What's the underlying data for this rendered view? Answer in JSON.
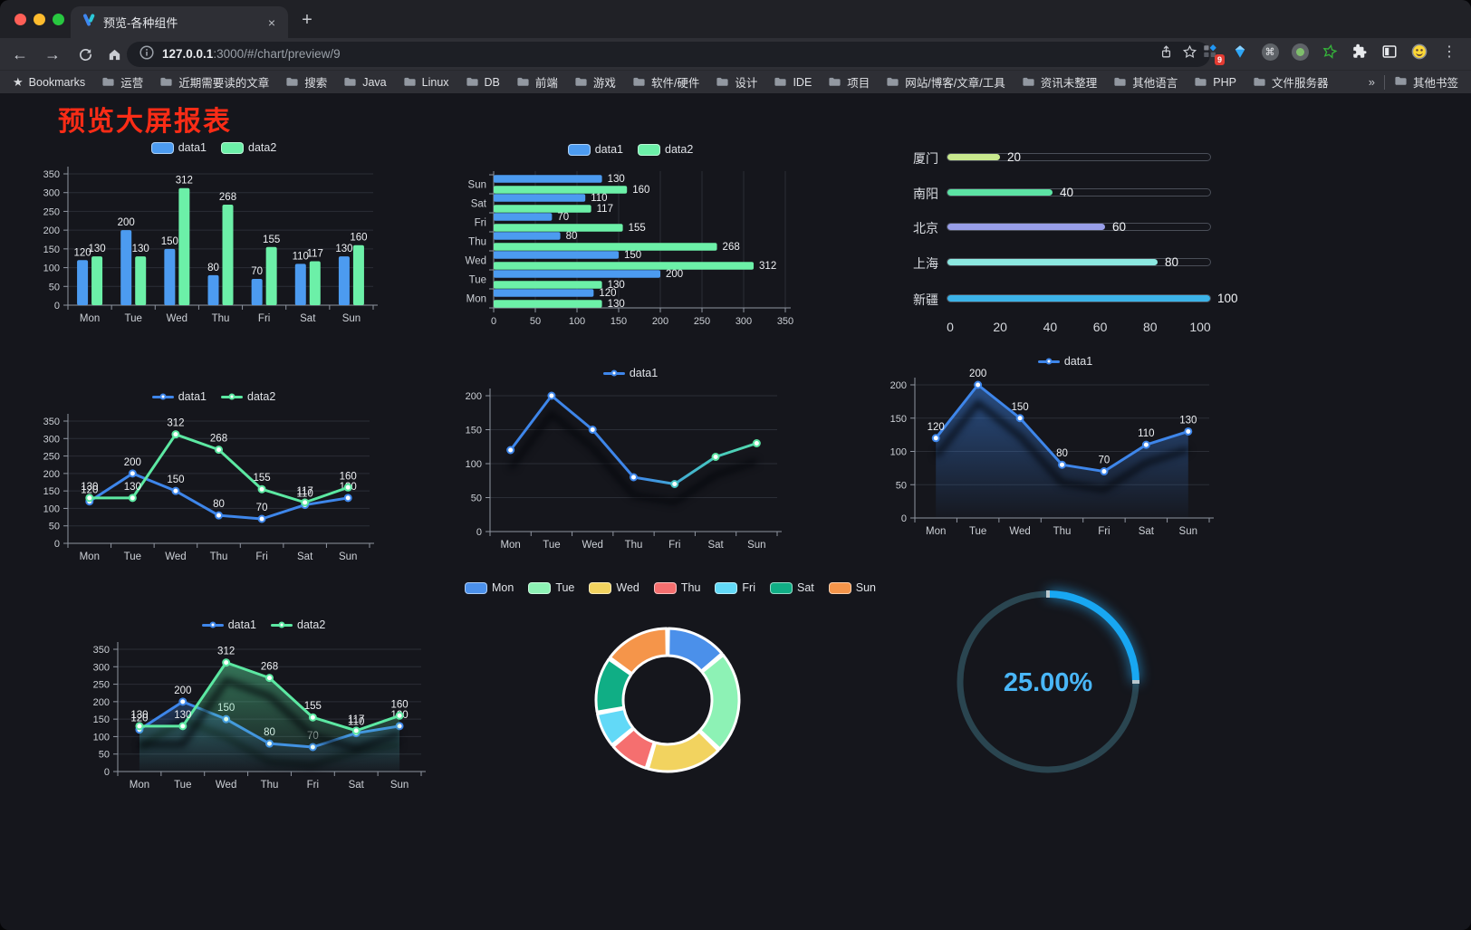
{
  "browser": {
    "traffic_lights": {
      "close": "#ff5f57",
      "minimize": "#febc2e",
      "zoom": "#28c840"
    },
    "tab": {
      "title": "预览-各种组件",
      "close_glyph": "×",
      "new_glyph": "+"
    },
    "url": {
      "host": "127.0.0.1",
      "rest": ":3000/#/chart/preview/9"
    },
    "bookmarks": {
      "label": "Bookmarks",
      "items": [
        "运营",
        "近期需要读的文章",
        "搜索",
        "Java",
        "Linux",
        "DB",
        "前端",
        "游戏",
        "软件/硬件",
        "设计",
        "IDE",
        "项目",
        "网站/博客/文章/工具",
        "资讯未整理",
        "其他语言",
        "PHP",
        "文件服务器"
      ],
      "overflow_glyph": "»",
      "other_label": "其他书签"
    },
    "extensions": {
      "badge": "9"
    }
  },
  "page": {
    "title": "预览大屏报表",
    "title_color": "#fa2c16",
    "background": "#15161c"
  },
  "chart_data": [
    {
      "id": "grouped-bar",
      "type": "bar",
      "legend_position": "top",
      "grid": true,
      "categories": [
        "Mon",
        "Tue",
        "Wed",
        "Thu",
        "Fri",
        "Sat",
        "Sun"
      ],
      "series": [
        {
          "name": "data1",
          "color": "#4c9bf0",
          "values": [
            120,
            200,
            150,
            80,
            70,
            110,
            130
          ]
        },
        {
          "name": "data2",
          "color": "#6cf0a8",
          "values": [
            130,
            130,
            312,
            268,
            155,
            117,
            160
          ]
        }
      ],
      "ylim": [
        0,
        350
      ],
      "yticks": [
        0,
        50,
        100,
        150,
        200,
        250,
        300,
        350
      ]
    },
    {
      "id": "grouped-hbar",
      "type": "bar",
      "orientation": "horizontal",
      "legend_position": "top",
      "grid": true,
      "categories": [
        "Mon",
        "Tue",
        "Wed",
        "Thu",
        "Fri",
        "Sat",
        "Sun"
      ],
      "category_order_on_screen": "Sun at top",
      "series": [
        {
          "name": "data1",
          "color": "#4c9bf0",
          "values": [
            120,
            200,
            150,
            80,
            70,
            110,
            130
          ]
        },
        {
          "name": "data2",
          "color": "#6cf0a8",
          "values": [
            130,
            130,
            312,
            268,
            155,
            117,
            160
          ]
        }
      ],
      "xlim": [
        0,
        350
      ],
      "xticks": [
        0,
        50,
        100,
        150,
        200,
        250,
        300,
        350
      ]
    },
    {
      "id": "city-progress",
      "type": "bar",
      "subtype": "progress-list",
      "categories": [
        "厦门",
        "南阳",
        "北京",
        "上海",
        "新疆"
      ],
      "values": [
        20,
        40,
        60,
        80,
        100
      ],
      "colors": [
        "#c8e98e",
        "#5ce3a4",
        "#989ee8",
        "#8ce8e0",
        "#3cb3e8"
      ],
      "xlim": [
        0,
        100
      ],
      "xticks": [
        0,
        20,
        40,
        60,
        80,
        100
      ]
    },
    {
      "id": "multi-line",
      "type": "line",
      "legend_position": "top",
      "grid": true,
      "categories": [
        "Mon",
        "Tue",
        "Wed",
        "Thu",
        "Fri",
        "Sat",
        "Sun"
      ],
      "series": [
        {
          "name": "data1",
          "color": "#3e86ea",
          "values": [
            120,
            200,
            150,
            80,
            70,
            110,
            130
          ],
          "labels": true
        },
        {
          "name": "data2",
          "color": "#5ce8a2",
          "values": [
            130,
            130,
            312,
            268,
            155,
            117,
            160
          ],
          "labels": true
        }
      ],
      "ylim": [
        0,
        350
      ],
      "yticks": [
        0,
        50,
        100,
        150,
        200,
        250,
        300,
        350
      ]
    },
    {
      "id": "gradient-line",
      "type": "line",
      "subtype": "gradient-stroke-with-shadow",
      "legend_position": "top",
      "grid": true,
      "categories": [
        "Mon",
        "Tue",
        "Wed",
        "Thu",
        "Fri",
        "Sat",
        "Sun"
      ],
      "series": [
        {
          "name": "data1",
          "color": "#3e86ea",
          "color_end": "#5be3a3",
          "gradient": [
            [
              0,
              "#3e86ea"
            ],
            [
              0.5,
              "#3e86ea"
            ],
            [
              0.78,
              "#46c8c0"
            ],
            [
              1,
              "#5be3a3"
            ]
          ],
          "values": [
            120,
            200,
            150,
            80,
            70,
            110,
            130
          ],
          "labels": false,
          "shadow": true
        }
      ],
      "ylim": [
        0,
        200
      ],
      "yticks": [
        0,
        50,
        100,
        150,
        200
      ]
    },
    {
      "id": "area-line",
      "type": "area",
      "legend_position": "top",
      "grid": true,
      "categories": [
        "Mon",
        "Tue",
        "Wed",
        "Thu",
        "Fri",
        "Sat",
        "Sun"
      ],
      "series": [
        {
          "name": "data1",
          "color": "#3e86ea",
          "values": [
            120,
            200,
            150,
            80,
            70,
            110,
            130
          ],
          "labels": true,
          "area": true,
          "shadow": true
        }
      ],
      "ylim": [
        0,
        200
      ],
      "yticks": [
        0,
        50,
        100,
        150,
        200
      ]
    },
    {
      "id": "multi-area",
      "type": "area",
      "legend_position": "top",
      "grid": true,
      "categories": [
        "Mon",
        "Tue",
        "Wed",
        "Thu",
        "Fri",
        "Sat",
        "Sun"
      ],
      "series": [
        {
          "name": "data1",
          "color": "#3e86ea",
          "values": [
            120,
            200,
            150,
            80,
            70,
            110,
            130
          ],
          "labels": true,
          "area": true,
          "shadow": true
        },
        {
          "name": "data2",
          "color": "#5ce8a2",
          "values": [
            130,
            130,
            312,
            268,
            155,
            117,
            160
          ],
          "labels": true,
          "area": true,
          "shadow": true
        }
      ],
      "ylim": [
        0,
        350
      ],
      "yticks": [
        0,
        50,
        100,
        150,
        200,
        250,
        300,
        350
      ]
    },
    {
      "id": "weekday-donut",
      "type": "pie",
      "subtype": "donut",
      "legend_position": "top",
      "categories": [
        "Mon",
        "Tue",
        "Wed",
        "Thu",
        "Fri",
        "Sat",
        "Sun"
      ],
      "values": [
        120,
        200,
        150,
        80,
        70,
        110,
        130
      ],
      "colors": [
        "#4b90ea",
        "#8df2b5",
        "#f2d35f",
        "#f56f6f",
        "#62d9f7",
        "#10ae85",
        "#f5954a"
      ],
      "border_color": "#ffffff"
    },
    {
      "id": "percent-gauge",
      "type": "gauge",
      "value": 25,
      "label": "25.00%",
      "color": "#18a7f2",
      "track_color": "#2a4550",
      "label_color": "#49b6f7"
    }
  ]
}
